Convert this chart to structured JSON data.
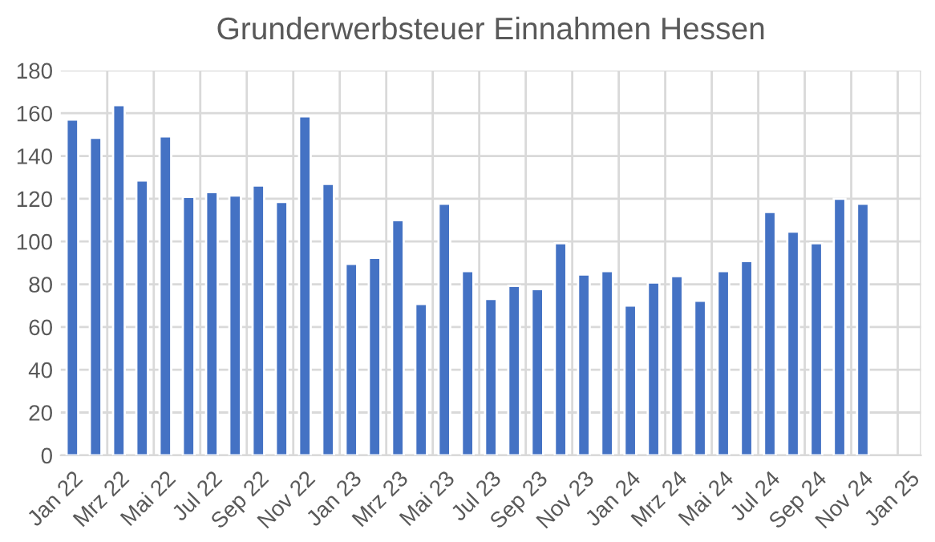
{
  "chart_data": {
    "type": "bar",
    "title": "Grunderwerbsteuer Einnahmen Hessen",
    "categories": [
      "Jan 22",
      null,
      "Mrz 22",
      null,
      "Mai 22",
      null,
      "Jul 22",
      null,
      "Sep 22",
      null,
      "Nov 22",
      null,
      "Jan 23",
      null,
      "Mrz 23",
      null,
      "Mai 23",
      null,
      "Jul 23",
      null,
      "Sep 23",
      null,
      "Nov 23",
      null,
      "Jan 24",
      null,
      "Mrz 24",
      null,
      "Mai 24",
      null,
      "Jul 24",
      null,
      "Sep 24",
      null,
      "Nov 24",
      null,
      "Jan 25"
    ],
    "values": [
      157,
      148.5,
      163.8,
      128.5,
      149.2,
      120.8,
      123.1,
      121.5,
      126.2,
      118.5,
      158.5,
      126.9,
      89.5,
      92.3,
      110,
      70.8,
      117.7,
      86.2,
      73.1,
      79.2,
      77.7,
      99.2,
      84.6,
      86.2,
      70,
      80.8,
      83.8,
      72.3,
      86.2,
      90.8,
      113.8,
      104.6,
      99.2,
      120,
      117.7,
      null,
      null
    ],
    "color": "#4472c4",
    "ylim": [
      0,
      180
    ],
    "yticks": [
      0,
      20,
      40,
      60,
      80,
      100,
      120,
      140,
      160,
      180
    ],
    "grid": true,
    "legend": false
  }
}
